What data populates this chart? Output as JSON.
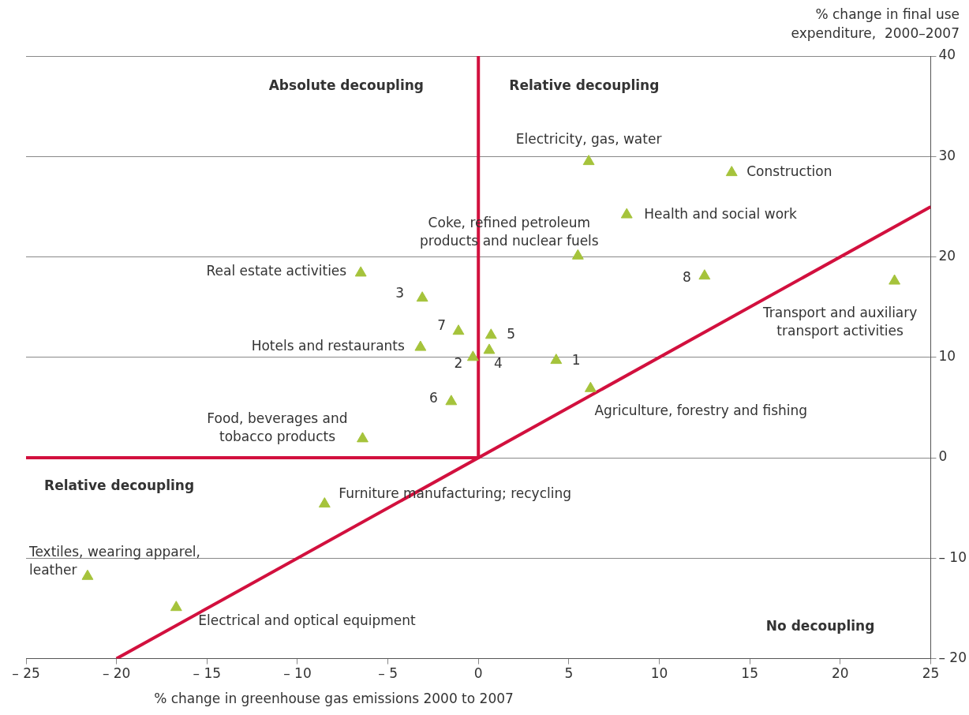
{
  "chart_data": {
    "type": "scatter",
    "xlabel": "% change in greenhouse gas emissions 2000 to 2007",
    "ylabel": "% change in final use\nexpenditure,  2000–2007",
    "xlim": [
      -25,
      25
    ],
    "xticks": [
      {
        "value": -25,
        "label": "– 25"
      },
      {
        "value": -20,
        "label": "– 20"
      },
      {
        "value": -15,
        "label": "– 15"
      },
      {
        "value": -10,
        "label": "– 10"
      },
      {
        "value": -5,
        "label": "– 5"
      },
      0,
      5,
      10,
      15,
      20,
      25
    ],
    "ylim": [
      -20,
      40
    ],
    "yticks": [
      {
        "value": -20,
        "label": "– 20"
      },
      {
        "value": -10,
        "label": "– 10"
      },
      0,
      10,
      20,
      30,
      40
    ],
    "grid": "y",
    "legend": false,
    "marker": "triangle",
    "annotations": [
      "Absolute decoupling",
      "Relative decoupling",
      "Relative decoupling",
      "No decoupling"
    ],
    "series": [
      {
        "name": "Electricity, gas, water",
        "color": "#a5c33b",
        "x": [
          6.1
        ],
        "values": [
          29.5
        ]
      },
      {
        "name": "Construction",
        "color": "#a5c33b",
        "x": [
          14.0
        ],
        "values": [
          28.4
        ]
      },
      {
        "name": "Health and social work",
        "color": "#a5c33b",
        "x": [
          8.2
        ],
        "values": [
          24.2
        ]
      },
      {
        "name": "Coke, refined petroleum\nproducts and nuclear fuels",
        "color": "#a5c33b",
        "x": [
          5.5
        ],
        "values": [
          20.1
        ]
      },
      {
        "name": "Real estate activities",
        "color": "#a5c33b",
        "x": [
          -6.5
        ],
        "values": [
          18.4
        ]
      },
      {
        "name": "3",
        "color": "#a5c33b",
        "x": [
          -3.1
        ],
        "values": [
          15.9
        ]
      },
      {
        "name": "8",
        "color": "#a5c33b",
        "x": [
          12.5
        ],
        "values": [
          18.1
        ]
      },
      {
        "name": "Transport and auxiliary\ntransport activities",
        "color": "#a5c33b",
        "x": [
          23.0
        ],
        "values": [
          17.6
        ]
      },
      {
        "name": "7",
        "color": "#a5c33b",
        "x": [
          -1.1
        ],
        "values": [
          12.6
        ]
      },
      {
        "name": "5",
        "color": "#a5c33b",
        "x": [
          0.7
        ],
        "values": [
          12.2
        ]
      },
      {
        "name": "Hotels and restaurants",
        "color": "#a5c33b",
        "x": [
          -3.2
        ],
        "values": [
          11.0
        ]
      },
      {
        "name": "4",
        "color": "#a5c33b",
        "x": [
          0.6
        ],
        "values": [
          10.7
        ]
      },
      {
        "name": "2",
        "color": "#a5c33b",
        "x": [
          -0.3
        ],
        "values": [
          10.0
        ]
      },
      {
        "name": "1",
        "color": "#a5c33b",
        "x": [
          4.3
        ],
        "values": [
          9.7
        ]
      },
      {
        "name": "Agriculture, forestry and fishing",
        "color": "#a5c33b",
        "x": [
          6.2
        ],
        "values": [
          6.9
        ]
      },
      {
        "name": "6",
        "color": "#a5c33b",
        "x": [
          -1.5
        ],
        "values": [
          5.6
        ]
      },
      {
        "name": "Food, beverages and\ntobacco products",
        "color": "#a5c33b",
        "x": [
          -6.4
        ],
        "values": [
          1.9
        ]
      },
      {
        "name": "Furniture manufacturing; recycling",
        "color": "#a5c33b",
        "x": [
          -8.5
        ],
        "values": [
          -4.6
        ]
      },
      {
        "name": "Textiles, wearing apparel,\nleather",
        "color": "#a5c33b",
        "x": [
          -21.6
        ],
        "values": [
          -11.8
        ]
      },
      {
        "name": "Electrical and optical equipment",
        "color": "#a5c33b",
        "x": [
          -16.7
        ],
        "values": [
          -14.9
        ]
      },
      {
        "type": "line",
        "marker": "none",
        "color": "#d2103e",
        "x": [
          -25,
          0,
          0
        ],
        "values": [
          0,
          0,
          40
        ]
      },
      {
        "type": "line",
        "marker": "none",
        "color": "#d2103e",
        "x": [
          -20,
          25
        ],
        "values": [
          -20,
          25
        ]
      }
    ]
  }
}
